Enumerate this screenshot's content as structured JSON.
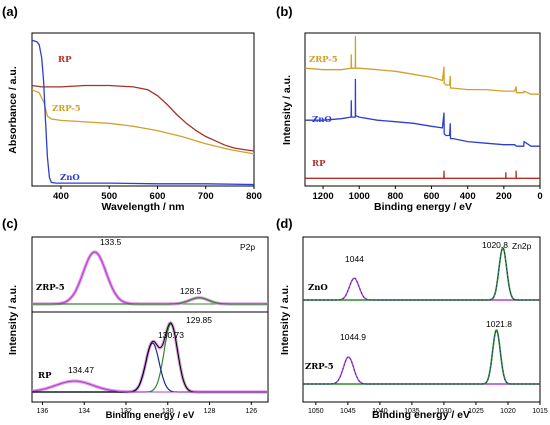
{
  "chart_data": [
    {
      "panel": "(a)",
      "type": "line",
      "xlabel": "Wavelength / nm",
      "ylabel": "Absorbance / a.u.",
      "xlim": [
        340,
        800
      ],
      "ylim": [
        0,
        1.05
      ],
      "xticks": [
        "400",
        "500",
        "600",
        "700",
        "800"
      ],
      "xtick_values": [
        400,
        500,
        600,
        700,
        800
      ],
      "series": [
        {
          "name": "RP",
          "color": "#a0342a",
          "x": [
            340,
            360,
            400,
            450,
            500,
            550,
            580,
            600,
            620,
            640,
            660,
            680,
            700,
            720,
            740,
            760,
            780,
            800
          ],
          "y": [
            0.69,
            0.68,
            0.68,
            0.69,
            0.69,
            0.68,
            0.66,
            0.62,
            0.56,
            0.49,
            0.43,
            0.38,
            0.34,
            0.31,
            0.28,
            0.26,
            0.25,
            0.24
          ]
        },
        {
          "name": "ZRP-5",
          "color": "#d2a02c",
          "x": [
            340,
            355,
            365,
            372,
            380,
            400,
            450,
            500,
            550,
            600,
            650,
            700,
            750,
            800
          ],
          "y": [
            0.66,
            0.64,
            0.57,
            0.48,
            0.46,
            0.45,
            0.44,
            0.43,
            0.41,
            0.38,
            0.34,
            0.29,
            0.25,
            0.22
          ]
        },
        {
          "name": "ZnO",
          "color": "#2d3fd0",
          "x": [
            340,
            350,
            355,
            360,
            364,
            368,
            372,
            376,
            380,
            390,
            400,
            500,
            600,
            700,
            800
          ],
          "y": [
            1.0,
            0.99,
            0.97,
            0.88,
            0.72,
            0.45,
            0.2,
            0.06,
            0.025,
            0.02,
            0.02,
            0.02,
            0.015,
            0.015,
            0.01
          ]
        }
      ]
    },
    {
      "panel": "(b)",
      "type": "line",
      "xlabel": "Binding energy / eV",
      "ylabel": "Intensity / a.u.",
      "xlim": [
        1300,
        0
      ],
      "ylim": [
        0,
        1.0
      ],
      "xticks": [
        "1200",
        "1000",
        "800",
        "600",
        "400",
        "200",
        "0"
      ],
      "xtick_values": [
        1200,
        1000,
        800,
        600,
        400,
        200,
        0
      ],
      "series": [
        {
          "name": "ZRP-5",
          "color": "#d2a02c",
          "x": [
            1300,
            1200,
            1100,
            1045,
            1044,
            1043,
            1022,
            1021,
            1020,
            1000,
            900,
            800,
            700,
            600,
            540,
            531,
            530,
            520,
            500,
            496,
            495,
            480,
            400,
            300,
            200,
            140,
            133,
            130,
            90,
            88,
            50,
            0
          ],
          "y": [
            0.77,
            0.76,
            0.76,
            0.77,
            0.86,
            0.77,
            0.77,
            0.98,
            0.77,
            0.77,
            0.76,
            0.75,
            0.73,
            0.71,
            0.69,
            0.78,
            0.67,
            0.66,
            0.66,
            0.72,
            0.64,
            0.64,
            0.63,
            0.63,
            0.62,
            0.62,
            0.65,
            0.61,
            0.61,
            0.62,
            0.6,
            0.6
          ]
        },
        {
          "name": "ZnO",
          "color": "#2d3fd0",
          "x": [
            1300,
            1200,
            1100,
            1045,
            1044,
            1043,
            1022,
            1021,
            1020,
            1000,
            900,
            800,
            700,
            600,
            540,
            531,
            530,
            520,
            500,
            496,
            495,
            480,
            400,
            300,
            200,
            140,
            130,
            100,
            90,
            88,
            50,
            0
          ],
          "y": [
            0.43,
            0.43,
            0.44,
            0.45,
            0.56,
            0.45,
            0.45,
            0.7,
            0.46,
            0.45,
            0.43,
            0.42,
            0.41,
            0.39,
            0.38,
            0.48,
            0.34,
            0.33,
            0.33,
            0.41,
            0.31,
            0.31,
            0.29,
            0.28,
            0.27,
            0.27,
            0.26,
            0.26,
            0.26,
            0.29,
            0.26,
            0.26
          ]
        },
        {
          "name": "RP",
          "color": "#b5302a",
          "x": [
            1300,
            1200,
            1000,
            800,
            600,
            540,
            532,
            531,
            530,
            520,
            400,
            300,
            200,
            190,
            189,
            188,
            150,
            133,
            132,
            131,
            120,
            0
          ],
          "y": [
            0.05,
            0.05,
            0.05,
            0.05,
            0.05,
            0.05,
            0.05,
            0.1,
            0.05,
            0.05,
            0.05,
            0.05,
            0.05,
            0.05,
            0.09,
            0.05,
            0.05,
            0.05,
            0.1,
            0.05,
            0.05,
            0.05
          ]
        }
      ]
    },
    {
      "panel": "(c)",
      "type": "line",
      "xlabel": "Binding energy / eV",
      "ylabel": "Intensity / a.u.",
      "xlim": [
        136.5,
        125.2
      ],
      "corner_label": "P2p",
      "xticks": [
        "136",
        "134",
        "132",
        "130",
        "128",
        "126"
      ],
      "xtick_values": [
        136,
        134,
        132,
        130,
        128,
        126
      ],
      "series_labels": [
        {
          "name": "ZRP-5",
          "color": "#000000"
        },
        {
          "name": "RP",
          "color": "#000000"
        }
      ],
      "peak_labels": [
        "133.5",
        "128.5",
        "129.85",
        "130.73",
        "134.47"
      ],
      "peaks": [
        {
          "series": "ZRP-5",
          "center": 133.5,
          "label": "133.5"
        },
        {
          "series": "ZRP-5",
          "center": 128.5,
          "label": "128.5"
        },
        {
          "series": "RP",
          "center": 129.85,
          "label": "129.85"
        },
        {
          "series": "RP",
          "center": 130.73,
          "label": "130.73"
        },
        {
          "series": "RP",
          "center": 134.47,
          "label": "134.47"
        }
      ]
    },
    {
      "panel": "(d)",
      "type": "line",
      "xlabel": "Binding energy / eV",
      "ylabel": "Intensity / a.u.",
      "xlim": [
        1052,
        1015
      ],
      "corner_label": "Zn2p",
      "xticks": [
        "1050",
        "1045",
        "1040",
        "1035",
        "1030",
        "1025",
        "1020",
        "1015"
      ],
      "xtick_values": [
        1050,
        1045,
        1040,
        1035,
        1030,
        1025,
        1020,
        1015
      ],
      "series_labels": [
        {
          "name": "ZnO",
          "color": "#000000"
        },
        {
          "name": "ZRP-5",
          "color": "#000000"
        }
      ],
      "peak_labels": [
        "1044",
        "1020.8",
        "1044.9",
        "1021.8"
      ],
      "peaks": [
        {
          "series": "ZnO",
          "center": 1044.0,
          "label": "1044"
        },
        {
          "series": "ZnO",
          "center": 1020.8,
          "label": "1020.8"
        },
        {
          "series": "ZRP-5",
          "center": 1044.9,
          "label": "1044.9"
        },
        {
          "series": "ZRP-5",
          "center": 1021.8,
          "label": "1021.8"
        }
      ]
    }
  ],
  "panel_labels": [
    "(a)",
    "(b)",
    "(c)",
    "(d)"
  ],
  "colors": {
    "fit_purple": "#b13fd6",
    "fit_green": "#2f8a2f",
    "bg_green": "#3c7c3c",
    "data_blue": "#1c2a8c",
    "envelope": "#d98ad9",
    "gray_data": "#8a8a8a"
  }
}
